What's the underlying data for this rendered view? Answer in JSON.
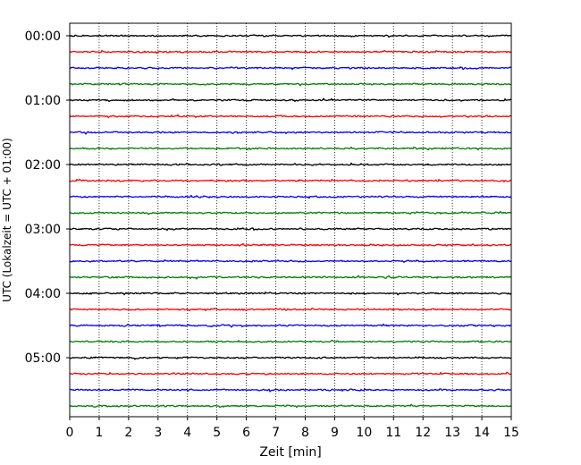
{
  "chart_data": {
    "type": "line",
    "title": "",
    "xlabel": "Zeit  [min]",
    "ylabel": "UTC (Lokalzeit = UTC + 01:00)",
    "xlim": [
      0,
      15
    ],
    "x_ticks": [
      "0",
      "1",
      "2",
      "3",
      "4",
      "5",
      "6",
      "7",
      "8",
      "9",
      "10",
      "11",
      "12",
      "13",
      "14",
      "15"
    ],
    "y_tick_labels": [
      "00:00",
      "01:00",
      "02:00",
      "03:00",
      "04:00",
      "05:00"
    ],
    "grid": "vertical dotted",
    "traces_per_hour": 4,
    "minutes_per_trace": 15,
    "trace_count": 24,
    "trace_colors": [
      "#000000",
      "#ff0000",
      "#0000ff",
      "#008000"
    ]
  }
}
